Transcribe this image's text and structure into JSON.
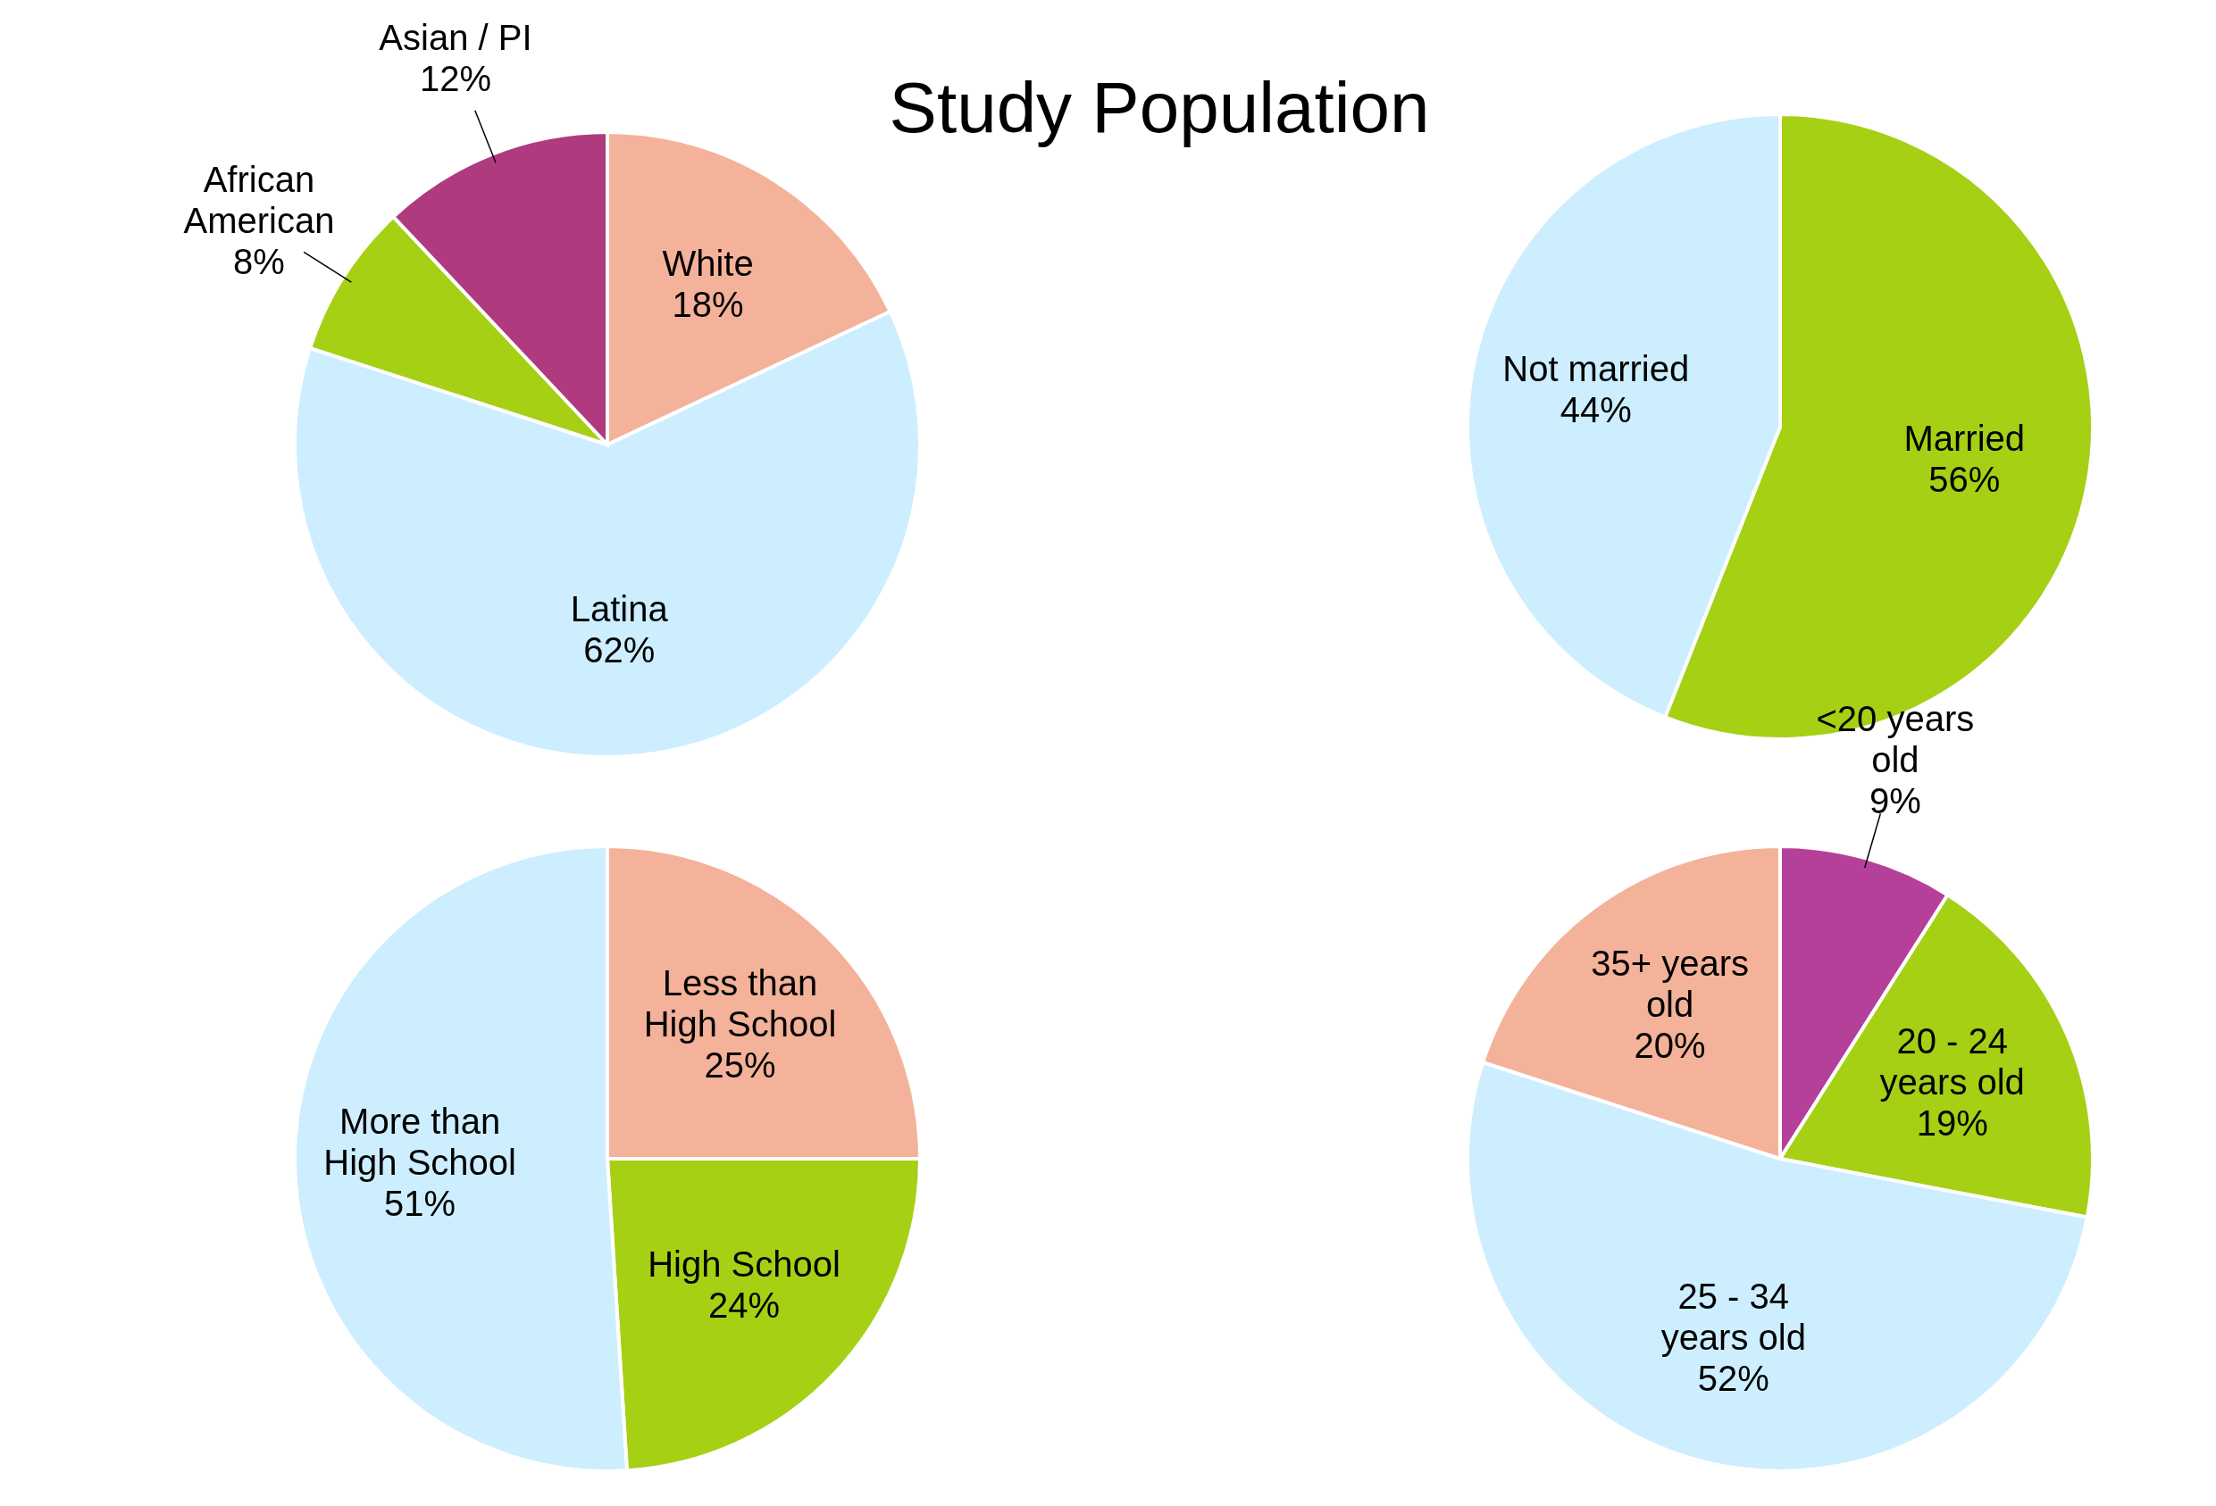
{
  "chart_data": [
    {
      "type": "pie",
      "title": "Study Population",
      "categories": [
        "White",
        "Latina",
        "African American",
        "Asian / PI"
      ],
      "values": [
        18,
        62,
        8,
        12
      ],
      "colors": [
        "#f4b29a",
        "#cdeefe",
        "#a5d014",
        "#b03a7e"
      ],
      "value_labels": [
        "18%",
        "62%",
        "8%",
        "12%"
      ]
    },
    {
      "type": "pie",
      "categories": [
        "Married",
        "Not married"
      ],
      "values": [
        56,
        44
      ],
      "colors": [
        "#a5d014",
        "#cdeefe"
      ],
      "value_labels": [
        "56%",
        "44%"
      ]
    },
    {
      "type": "pie",
      "categories": [
        "Less than High School",
        "High School",
        "More than High School"
      ],
      "values": [
        25,
        24,
        51
      ],
      "colors": [
        "#f4b29a",
        "#a5d014",
        "#cdeefe"
      ],
      "value_labels": [
        "25%",
        "24%",
        "51%"
      ]
    },
    {
      "type": "pie",
      "categories": [
        "<20 years old",
        "20 - 24 years old",
        "25 - 34 years old",
        "35+ years old"
      ],
      "values": [
        9,
        19,
        52,
        20
      ],
      "colors": [
        "#b5409a",
        "#a5d014",
        "#cdeefe",
        "#f4b29a"
      ],
      "value_labels": [
        "9%",
        "19%",
        "52%",
        "20%"
      ]
    }
  ]
}
